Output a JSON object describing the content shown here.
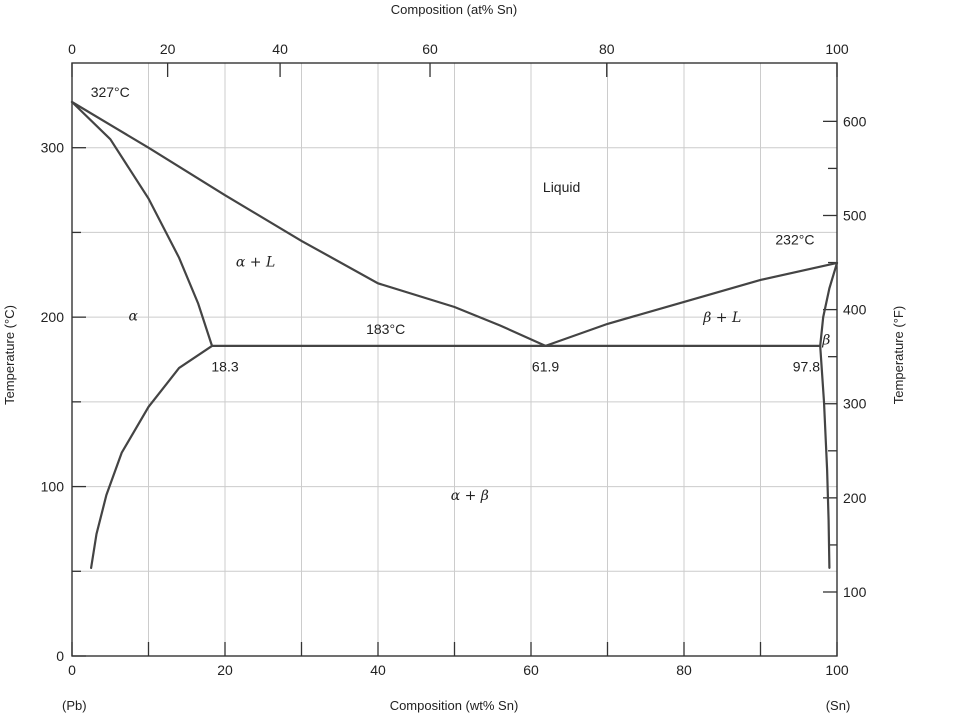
{
  "chart_data": {
    "type": "line",
    "title": "",
    "xlabel": "Composition (wt% Sn)",
    "xlabel_top": "Composition (at% Sn)",
    "ylabel_left": "Temperature (°C)",
    "ylabel_right": "Temperature (°F)",
    "end_label_left": "(Pb)",
    "end_label_right": "(Sn)",
    "xlim": [
      0,
      100
    ],
    "ylim": [
      0,
      350
    ],
    "grid": true,
    "x_ticks_bottom": [
      0,
      20,
      40,
      60,
      80,
      100
    ],
    "x_minor_ticks_bottom": [
      10,
      30,
      50,
      70,
      90
    ],
    "x_ticks_top": [
      {
        "label": "0",
        "wt": 0
      },
      {
        "label": "20",
        "wt": 12.5
      },
      {
        "label": "40",
        "wt": 27.2
      },
      {
        "label": "60",
        "wt": 46.8
      },
      {
        "label": "80",
        "wt": 69.9
      },
      {
        "label": "100",
        "wt": 100
      }
    ],
    "y_ticks_left": [
      0,
      100,
      200,
      300
    ],
    "y_minor_ticks_left": [
      50,
      150,
      250
    ],
    "y_ticks_right_f": [
      100,
      200,
      300,
      400,
      500,
      600
    ],
    "y_minor_ticks_right_f": [
      150,
      250,
      350,
      450,
      550
    ],
    "series": [
      {
        "name": "",
        "key": "liquidus-left",
        "points": [
          [
            0,
            327
          ],
          [
            10,
            300
          ],
          [
            20,
            272
          ],
          [
            30,
            245
          ],
          [
            40,
            220
          ],
          [
            50,
            206
          ],
          [
            56,
            195
          ],
          [
            61.9,
            183
          ]
        ]
      },
      {
        "name": "",
        "key": "liquidus-right",
        "points": [
          [
            61.9,
            183
          ],
          [
            70,
            196
          ],
          [
            80,
            209
          ],
          [
            90,
            222
          ],
          [
            100,
            232
          ]
        ]
      },
      {
        "name": "",
        "key": "solidus-left",
        "points": [
          [
            0,
            327
          ],
          [
            5,
            305
          ],
          [
            10,
            270
          ],
          [
            14,
            235
          ],
          [
            16.5,
            208
          ],
          [
            18.3,
            183
          ]
        ]
      },
      {
        "name": "",
        "key": "solvus-left",
        "points": [
          [
            18.3,
            183
          ],
          [
            14,
            170
          ],
          [
            10,
            147
          ],
          [
            6.5,
            120
          ],
          [
            4.5,
            95
          ],
          [
            3.2,
            72
          ],
          [
            2.5,
            52
          ]
        ]
      },
      {
        "name": "",
        "key": "eutectic-isotherm",
        "points": [
          [
            18.3,
            183
          ],
          [
            97.8,
            183
          ]
        ]
      },
      {
        "name": "",
        "key": "solidus-right",
        "points": [
          [
            97.8,
            183
          ],
          [
            98.2,
            200
          ],
          [
            99,
            217
          ],
          [
            100,
            232
          ]
        ]
      },
      {
        "name": "",
        "key": "solvus-right",
        "points": [
          [
            97.8,
            183
          ],
          [
            98.3,
            150
          ],
          [
            98.7,
            110
          ],
          [
            98.9,
            80
          ],
          [
            99,
            52
          ]
        ]
      }
    ],
    "annotations": [
      {
        "text": "327°C",
        "x": 5,
        "y": 330,
        "style": "annot"
      },
      {
        "text": "232°C",
        "x": 94.5,
        "y": 243,
        "style": "annot"
      },
      {
        "text": "183°C",
        "x": 41,
        "y": 190,
        "style": "annot"
      },
      {
        "text": "18.3",
        "x": 20,
        "y": 168,
        "style": "annot"
      },
      {
        "text": "61.9",
        "x": 61.9,
        "y": 168,
        "style": "annot"
      },
      {
        "text": "97.8",
        "x": 96,
        "y": 168,
        "style": "annot"
      },
      {
        "text": "Liquid",
        "x": 64,
        "y": 274,
        "style": "plain"
      },
      {
        "text": "α + L",
        "x": 24,
        "y": 230,
        "style": "italic"
      },
      {
        "text": "α",
        "x": 8,
        "y": 198,
        "style": "italic"
      },
      {
        "text": "β + L",
        "x": 85,
        "y": 197,
        "style": "italic"
      },
      {
        "text": "β",
        "x": 98.6,
        "y": 184,
        "style": "italic"
      },
      {
        "text": "α + β",
        "x": 52,
        "y": 92,
        "style": "italic"
      }
    ]
  }
}
